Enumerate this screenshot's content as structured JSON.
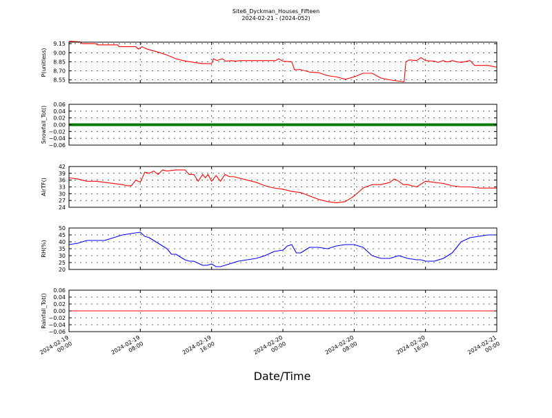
{
  "chart_data": {
    "type": "line",
    "title": "Site6_Dyckman_Houses_Fifteen",
    "subtitle": "2024-02-21 - (2024-052)",
    "xlabel": "Date/Time",
    "grid": true,
    "x_range": [
      "2024-02-19 00:00",
      "2024-02-21 00:00"
    ],
    "x_tick_labels": [
      [
        "2024-02-19",
        "00:00"
      ],
      [
        "2024-02-19",
        "08:00"
      ],
      [
        "2024-02-19",
        "16:00"
      ],
      [
        "2024-02-20",
        "00:00"
      ],
      [
        "2024-02-20",
        "08:00"
      ],
      [
        "2024-02-20",
        "16:00"
      ],
      [
        "2024-02-21",
        "00:00"
      ]
    ],
    "panels": [
      {
        "ylabel": "P(unitless)",
        "ylim": [
          8.5,
          9.175
        ],
        "yticks": [
          "9.15",
          "9.00",
          "8.85",
          "8.70",
          "8.55"
        ],
        "ytick_values": [
          9.15,
          9.0,
          8.85,
          8.7,
          8.55
        ],
        "color": "#ff0000",
        "marker": "line",
        "x_hours": [
          0,
          1.2,
          1.5,
          3,
          3.2,
          5.5,
          5.6,
          7.5,
          7.8,
          8.2,
          8.6,
          9,
          10,
          11,
          12,
          12.8,
          13.2,
          14,
          15,
          16,
          16.2,
          16.6,
          17.2,
          17.6,
          18.2,
          18.7,
          19.2,
          20,
          21,
          23.2,
          23.5,
          24,
          25,
          25.3,
          26,
          27,
          28,
          29,
          30,
          31,
          32,
          33,
          34,
          35,
          36,
          37.5,
          37.6,
          37.8,
          38.2,
          39,
          39.5,
          40,
          41,
          41.4,
          42,
          42.3,
          42.6,
          43,
          43.5,
          44,
          45,
          45.5,
          46,
          47,
          48
        ],
        "values": [
          9.19,
          9.18,
          9.15,
          9.15,
          9.13,
          9.13,
          9.1,
          9.1,
          9.06,
          9.1,
          9.07,
          9.05,
          9.01,
          8.96,
          8.9,
          8.87,
          8.86,
          8.84,
          8.82,
          8.82,
          8.9,
          8.87,
          8.9,
          8.86,
          8.87,
          8.86,
          8.87,
          8.87,
          8.87,
          8.87,
          8.9,
          8.86,
          8.85,
          8.72,
          8.72,
          8.68,
          8.67,
          8.62,
          8.6,
          8.56,
          8.6,
          8.66,
          8.66,
          8.58,
          8.55,
          8.52,
          8.52,
          8.85,
          8.88,
          8.87,
          8.92,
          8.87,
          8.86,
          8.84,
          8.87,
          8.85,
          8.85,
          8.87,
          8.85,
          8.84,
          8.87,
          8.79,
          8.79,
          8.79,
          8.76
        ]
      },
      {
        "ylabel": "Snowfall_Tot()",
        "ylim": [
          -0.06,
          0.06
        ],
        "yticks": [
          "0.06",
          "0.04",
          "0.02",
          "0.00",
          "−0.02",
          "−0.04",
          "−0.06"
        ],
        "ytick_values": [
          0.06,
          0.04,
          0.02,
          0.0,
          -0.02,
          -0.04,
          -0.06
        ],
        "color": "#008000",
        "marker": "thick",
        "x_hours": [
          0,
          48
        ],
        "values": [
          0,
          0
        ]
      },
      {
        "ylabel": "AirTF()",
        "ylim": [
          24,
          42
        ],
        "yticks": [
          "42",
          "39",
          "36",
          "33",
          "30",
          "27",
          "24"
        ],
        "ytick_values": [
          42,
          39,
          36,
          33,
          30,
          27,
          24
        ],
        "color": "#ff0000",
        "marker": "line",
        "x_hours": [
          0,
          1,
          2,
          3,
          4,
          5,
          6,
          6.5,
          7,
          7.5,
          8,
          8.5,
          9,
          9.5,
          10,
          10.5,
          11,
          12,
          13,
          13.5,
          14,
          14.5,
          15,
          15.3,
          15.6,
          16,
          16.5,
          17,
          17.5,
          18,
          18.5,
          19,
          20,
          21,
          22,
          23,
          24,
          25,
          26,
          27,
          28,
          29,
          30,
          31,
          32,
          33,
          34,
          35,
          36,
          36.5,
          37,
          37.5,
          38,
          39,
          40,
          41,
          42,
          43,
          44,
          45,
          46,
          47,
          48
        ],
        "values": [
          37,
          36.5,
          35.5,
          35.5,
          35,
          34.5,
          34,
          33.5,
          33.5,
          36,
          35,
          39.5,
          39,
          40,
          38.5,
          40.5,
          40,
          40.5,
          40.5,
          38.5,
          38.5,
          35.5,
          38.5,
          37,
          38.5,
          35.5,
          38,
          35.5,
          38.5,
          37.5,
          37.5,
          37,
          36,
          35,
          33.5,
          32.5,
          32,
          31,
          30.5,
          29,
          27.5,
          26.5,
          26,
          26.5,
          29,
          32.5,
          34,
          34,
          35,
          36.5,
          35.5,
          34,
          34,
          33,
          35.5,
          35,
          34.5,
          33.5,
          33,
          33,
          32.5,
          32.5,
          32.5
        ]
      },
      {
        "ylabel": "RH(%)",
        "ylim": [
          20,
          50
        ],
        "yticks": [
          "50",
          "45",
          "40",
          "35",
          "30",
          "25",
          "20"
        ],
        "ytick_values": [
          50,
          45,
          40,
          35,
          30,
          25,
          20
        ],
        "color": "#0000ff",
        "marker": "line",
        "x_hours": [
          0,
          1,
          2,
          3,
          4,
          5,
          6,
          7,
          8,
          8.5,
          9,
          10,
          11,
          11.5,
          12,
          13,
          13.5,
          14,
          15,
          15.5,
          16,
          16.5,
          17,
          18,
          19,
          20,
          21,
          22,
          23,
          24,
          24.5,
          25,
          25.5,
          26,
          26.5,
          27,
          28,
          29,
          30,
          31,
          32,
          33,
          34,
          35,
          36,
          37,
          38,
          39,
          39.5,
          40,
          41,
          42,
          42.5,
          43,
          44,
          45,
          46,
          47,
          48
        ],
        "values": [
          38,
          39,
          41,
          41,
          41,
          43,
          45,
          46,
          47,
          44,
          43,
          39,
          35,
          31,
          31,
          27,
          26,
          26,
          23,
          23,
          24,
          22,
          22,
          24,
          26,
          27,
          28,
          30,
          33,
          34,
          37,
          38,
          32,
          32,
          34,
          36,
          36,
          35,
          37,
          38,
          38,
          36,
          30,
          28,
          28,
          30,
          28,
          27,
          27,
          26,
          26,
          28,
          30,
          32,
          40,
          43,
          44,
          45,
          45
        ]
      },
      {
        "ylabel": "Rainfall_Tot()",
        "ylim": [
          -0.06,
          0.06
        ],
        "yticks": [
          "0.06",
          "0.04",
          "0.02",
          "0.00",
          "−0.02",
          "−0.04",
          "−0.06"
        ],
        "ytick_values": [
          0.06,
          0.04,
          0.02,
          0.0,
          -0.02,
          -0.04,
          -0.06
        ],
        "color": "#ff0000",
        "marker": "line",
        "x_hours": [
          0,
          48
        ],
        "values": [
          0,
          0
        ]
      }
    ]
  }
}
